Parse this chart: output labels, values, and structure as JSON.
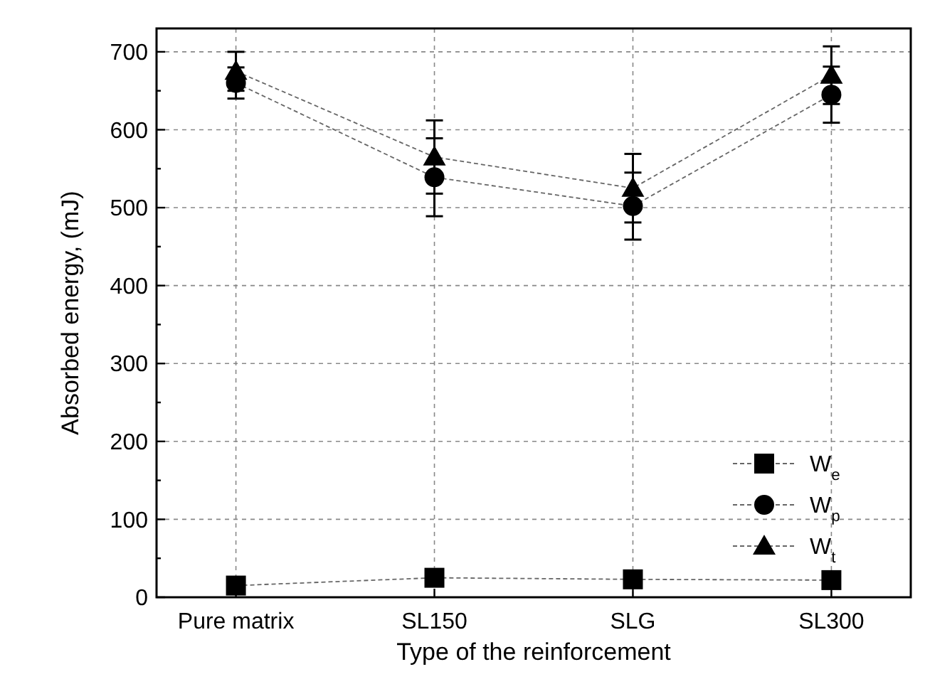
{
  "chart_data": {
    "type": "line",
    "xlabel": "Type of the reinforcement",
    "ylabel": "Absorbed energy, (mJ)",
    "categories": [
      "Pure matrix",
      "SL150",
      "SLG",
      "SL300"
    ],
    "series": [
      {
        "name": "W$_{e}$",
        "color": "#000000",
        "marker": "square",
        "values": [
          15,
          25,
          23,
          22
        ]
      },
      {
        "name": "W$_{p}$",
        "color": "#000000",
        "marker": "circle",
        "values": [
          660,
          539,
          502,
          645
        ],
        "errors": [
          20,
          50,
          43,
          36
        ]
      },
      {
        "name": "W$_{t}$",
        "color": "#000000",
        "marker": "triangle",
        "values": [
          675,
          565,
          525,
          670
        ],
        "errors": [
          25,
          47,
          44,
          37
        ]
      }
    ],
    "line_style": "dashed",
    "ylim": [
      0,
      730
    ],
    "yticks": [
      0,
      {
        "value": 50,
        "label": null
      },
      100,
      {
        "value": 150,
        "label": null
      },
      200,
      {
        "value": 250,
        "label": null
      },
      300,
      {
        "value": 350,
        "label": null
      },
      400,
      {
        "value": 450,
        "label": null
      },
      500,
      {
        "value": 550,
        "label": null
      },
      600,
      {
        "value": 650,
        "label": null
      },
      700
    ],
    "grid": true,
    "legend": "right"
  }
}
